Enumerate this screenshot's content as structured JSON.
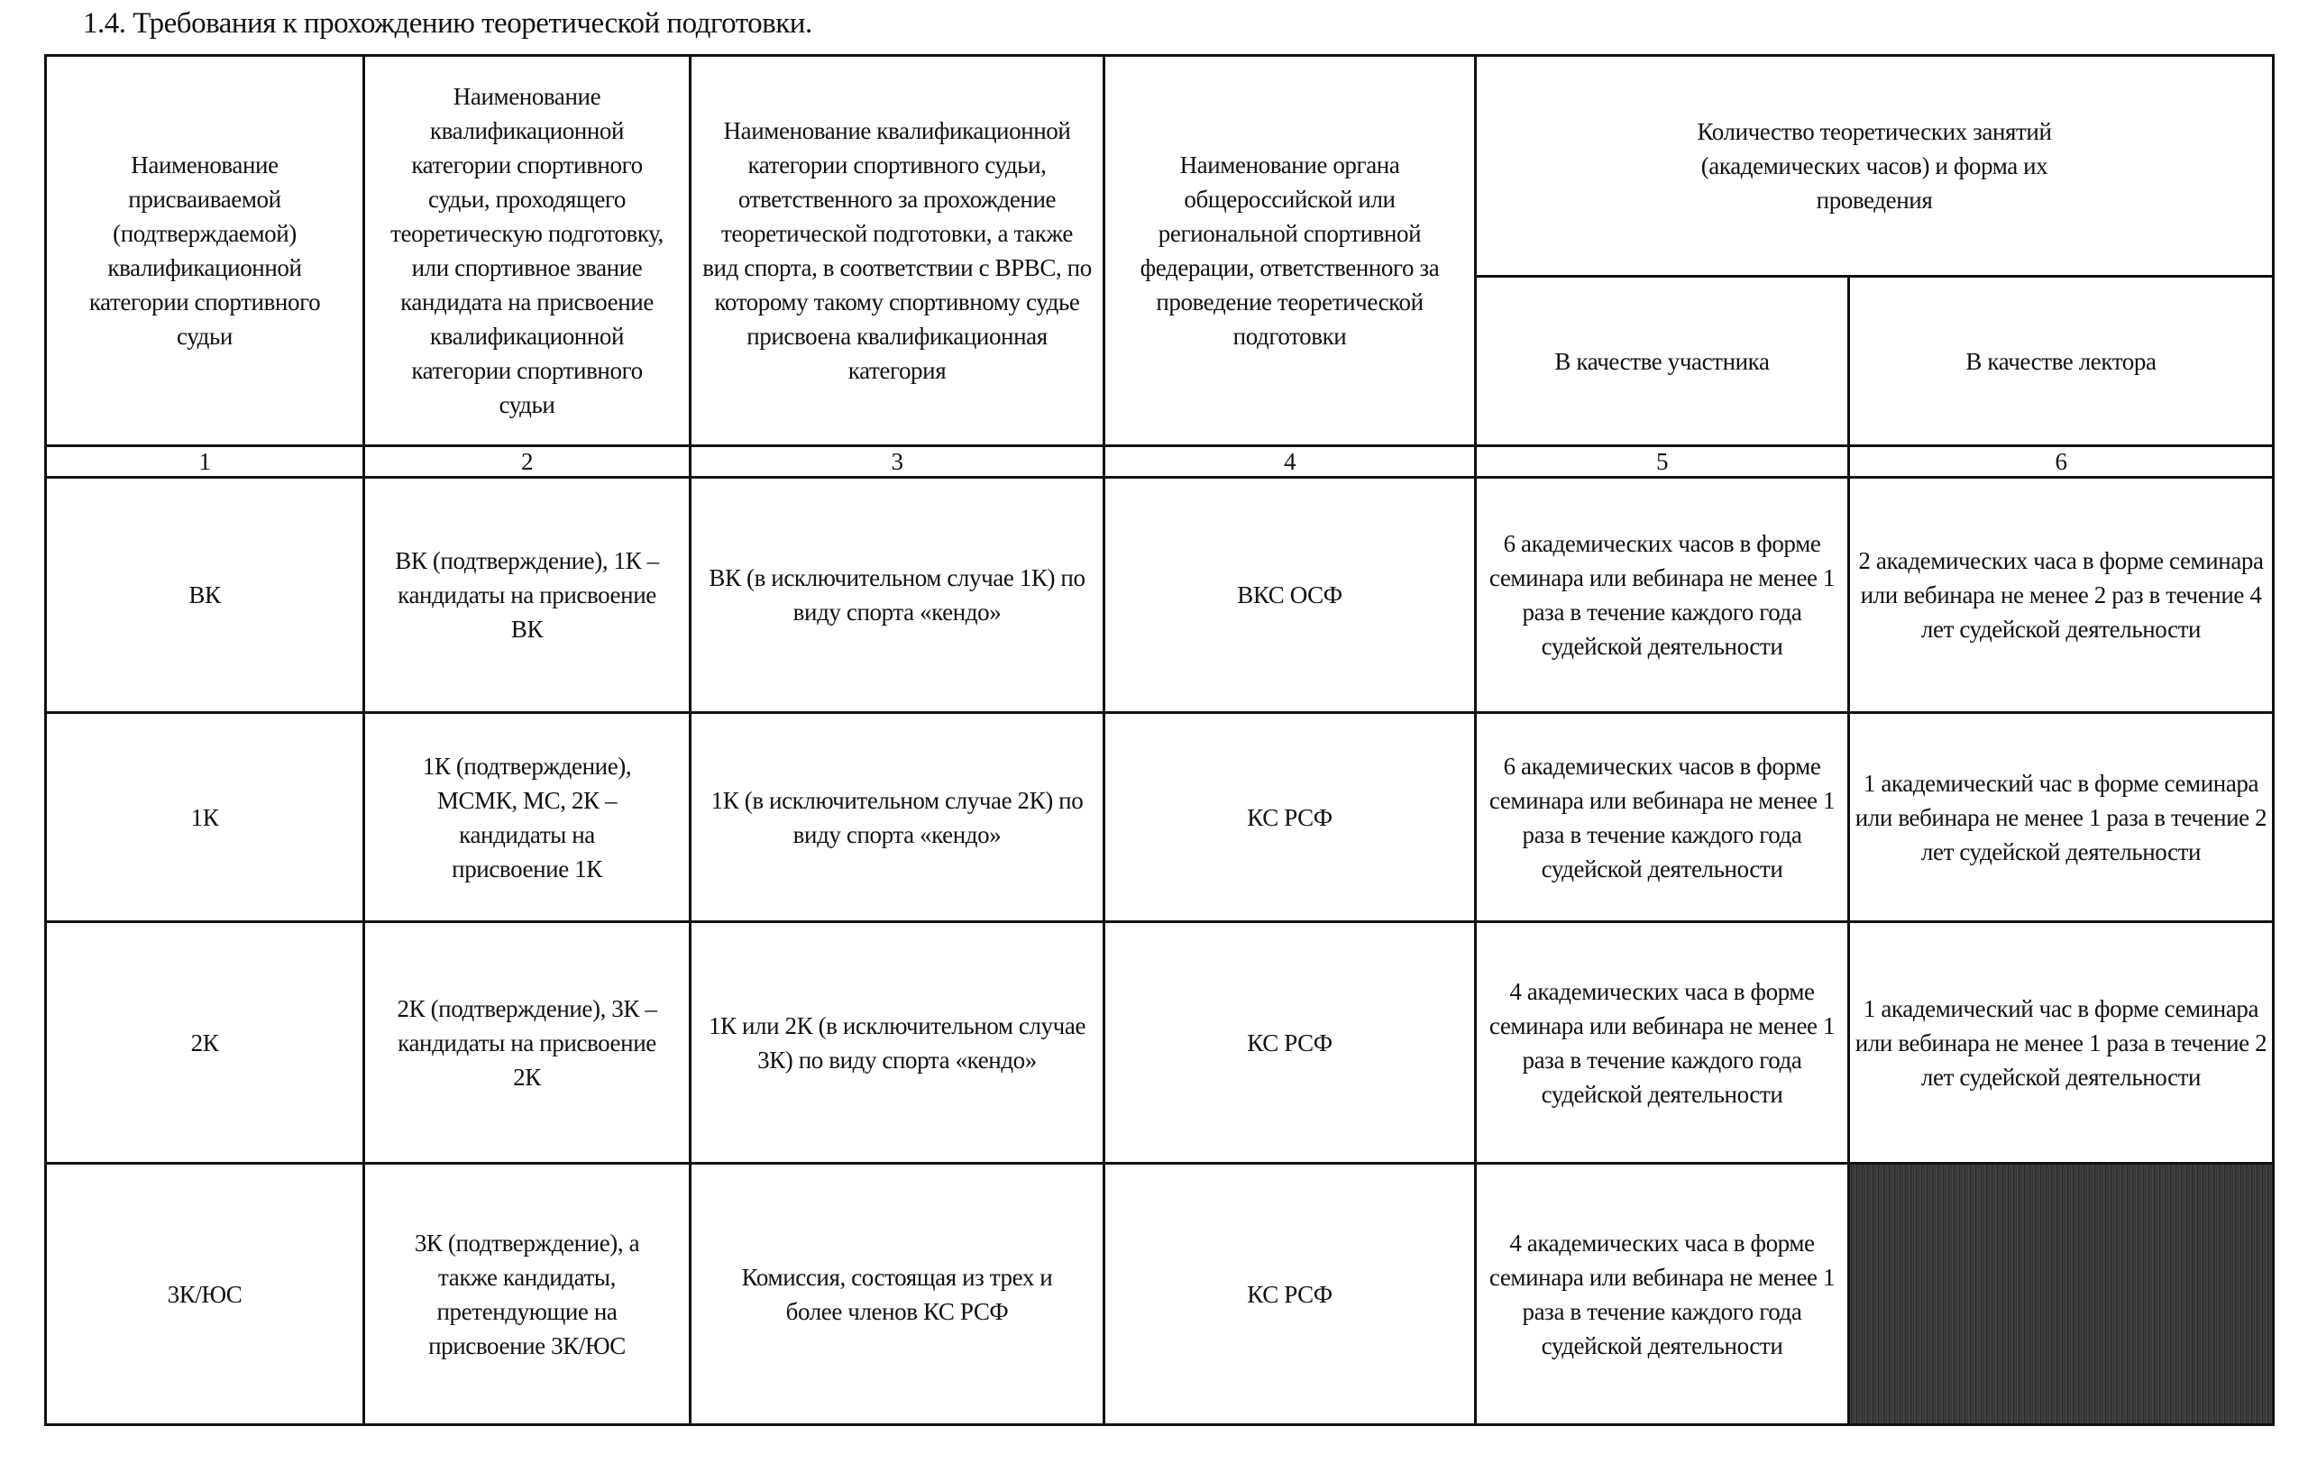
{
  "title": "1.4. Требования к прохождению теоретической подготовки.",
  "headers": {
    "col1": "Наименование присваиваемой (подтверждаемой) квалификационной категории спортивного судьи",
    "col2": "Наименование квалификационной категории спортивного судьи, проходящего теоретическую подготовку, или спортивное звание кандидата на присвоение квалификационной категории спортивного судьи",
    "col3": "Наименование квалификационной категории спортивного судьи, ответственного за прохождение теоретической подготовки, а также вид спорта, в соответствии с ВРВС, по которому такому спортивному судье присвоена квалификационная категория",
    "col4": "Наименование органа общероссийской или региональной спортивной федерации, ответственного за проведение теоретической подготовки",
    "col56": "Количество теоретических занятий (академических часов) и форма их проведения",
    "col5": "В качестве участника",
    "col6": "В качестве лектора"
  },
  "numbers": [
    "1",
    "2",
    "3",
    "4",
    "5",
    "6"
  ],
  "rows": [
    {
      "c1": "ВК",
      "c2": "ВК (подтверждение), 1К – кандидаты на присвоение ВК",
      "c3": "ВК (в исключительном случае 1К) по виду спорта «кендо»",
      "c4": "ВКС ОСФ",
      "c5": "6 академических часов в форме семинара или вебинара не менее 1 раза в течение каждого года судейской деятельности",
      "c6": "2 академических часа в форме семинара или вебинара не менее 2 раз в течение 4 лет судейской деятельности"
    },
    {
      "c1": "1К",
      "c2": "1К (подтверждение), МСМК, МС, 2К – кандидаты на присвоение 1К",
      "c3": "1К (в исключительном случае 2К) по виду спорта «кендо»",
      "c4": "КС РСФ",
      "c5": "6 академических часов в форме семинара или вебинара не менее 1 раза в течение каждого года судейской деятельности",
      "c6": "1 академический час в форме семинара или вебинара не менее 1 раза в течение 2 лет судейской деятельности"
    },
    {
      "c1": "2К",
      "c2": "2К (подтверждение), 3К – кандидаты на присвоение 2К",
      "c3": "1К или 2К (в исключительном случае 3К) по виду спорта «кендо»",
      "c4": "КС РСФ",
      "c5": "4 академических часа в форме семинара или вебинара не менее 1 раза в течение каждого года судейской деятельности",
      "c6": "1 академический час в форме семинара или вебинара не менее 1 раза в течение 2 лет судейской деятельности"
    },
    {
      "c1": "3К/ЮС",
      "c2": "3К (подтверждение), а также кандидаты, претендующие на присвоение 3К/ЮС",
      "c3": "Комиссия, состоящая из трех и более членов КС РСФ",
      "c4": "КС РСФ",
      "c5": "4 академических часа в форме семинара или вебинара не менее 1 раза в течение каждого года судейской деятельности",
      "c6": ""
    }
  ]
}
